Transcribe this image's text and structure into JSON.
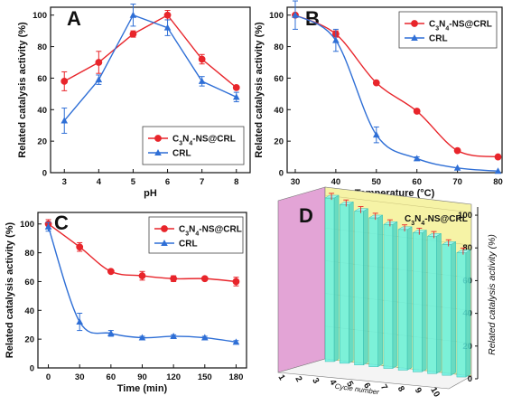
{
  "chart_data": [
    {
      "panel": "A",
      "type": "line",
      "xlabel": "pH",
      "ylabel": "Related catalysis activity (%)",
      "xlim": [
        2.6,
        8.4
      ],
      "ylim": [
        0,
        105
      ],
      "xticks": [
        3,
        4,
        5,
        6,
        7,
        8
      ],
      "yticks": [
        0,
        20,
        40,
        60,
        80,
        100
      ],
      "legend_position": "bottom-right",
      "series": [
        {
          "name": "C3N4-NS@CRL",
          "color": "#e8252b",
          "marker": "circle",
          "x": [
            3,
            4,
            5,
            6,
            7,
            8
          ],
          "y": [
            58,
            70,
            88,
            100,
            72,
            54
          ],
          "err": [
            6,
            7,
            2,
            3,
            3,
            1
          ]
        },
        {
          "name": "CRL",
          "color": "#2f6fd6",
          "marker": "triangle",
          "x": [
            3,
            4,
            5,
            6,
            7,
            8
          ],
          "y": [
            33,
            59,
            100,
            92,
            58,
            48
          ],
          "err": [
            8,
            3,
            7,
            5,
            3,
            3
          ]
        }
      ]
    },
    {
      "panel": "B",
      "type": "line",
      "xlabel": "Temperature (°C)",
      "ylabel": "Related catalysis activity (%)",
      "xlim": [
        28,
        81
      ],
      "ylim": [
        0,
        105
      ],
      "xticks": [
        30,
        40,
        50,
        60,
        70,
        80
      ],
      "yticks": [
        0,
        20,
        40,
        60,
        80,
        100
      ],
      "legend_position": "top-right",
      "series": [
        {
          "name": "C3N4-NS@CRL",
          "color": "#e8252b",
          "marker": "circle",
          "x": [
            30,
            40,
            50,
            60,
            70,
            80
          ],
          "y": [
            100,
            88,
            57,
            39,
            14,
            10
          ],
          "err": [
            0,
            2,
            1,
            1,
            0,
            0
          ]
        },
        {
          "name": "CRL",
          "color": "#2f6fd6",
          "marker": "triangle",
          "x": [
            30,
            40,
            50,
            60,
            70,
            80
          ],
          "y": [
            100,
            84,
            24,
            9,
            3,
            1
          ],
          "err": [
            9,
            7,
            5,
            1,
            0,
            0
          ]
        }
      ]
    },
    {
      "panel": "C",
      "type": "line",
      "xlabel": "Time (min)",
      "ylabel": "Related catalysis activity (%)",
      "xlim": [
        -10,
        190
      ],
      "ylim": [
        0,
        108
      ],
      "xticks": [
        0,
        30,
        60,
        90,
        120,
        150,
        180
      ],
      "yticks": [
        0,
        20,
        40,
        60,
        80,
        100
      ],
      "legend_position": "top-right",
      "series": [
        {
          "name": "C3N4-NS@CRL",
          "color": "#e8252b",
          "marker": "circle",
          "x": [
            0,
            30,
            60,
            90,
            120,
            150,
            180
          ],
          "y": [
            100,
            84,
            67,
            64,
            62,
            62,
            60
          ],
          "err": [
            3,
            3,
            1,
            3,
            2,
            1,
            3
          ]
        },
        {
          "name": "CRL",
          "color": "#2f6fd6",
          "marker": "triangle",
          "x": [
            0,
            30,
            60,
            90,
            120,
            150,
            180
          ],
          "y": [
            98,
            32,
            24,
            21,
            22,
            21,
            18
          ],
          "err": [
            3,
            6,
            2,
            1,
            1,
            1,
            1
          ]
        }
      ]
    },
    {
      "panel": "D",
      "type": "bar",
      "xlabel": "Cycle number",
      "ylabel": "Related catalysis activity  (%)",
      "categories": [
        "1",
        "2",
        "3",
        "4",
        "5",
        "6",
        "7",
        "8",
        "9",
        "10"
      ],
      "values": [
        100,
        97,
        94,
        91,
        88,
        86,
        85,
        84,
        80,
        76
      ],
      "err": [
        2,
        2,
        2,
        2,
        2,
        2,
        2,
        2,
        2,
        2
      ],
      "legend": "C3N4-NS@CRL",
      "ylim": [
        0,
        105
      ],
      "yticks": [
        0,
        20,
        40,
        60,
        80,
        100
      ],
      "bar_color": "#66f0e0",
      "back_wall_color": "#f6f3a6",
      "side_wall_color": "#e3a4d6"
    }
  ]
}
